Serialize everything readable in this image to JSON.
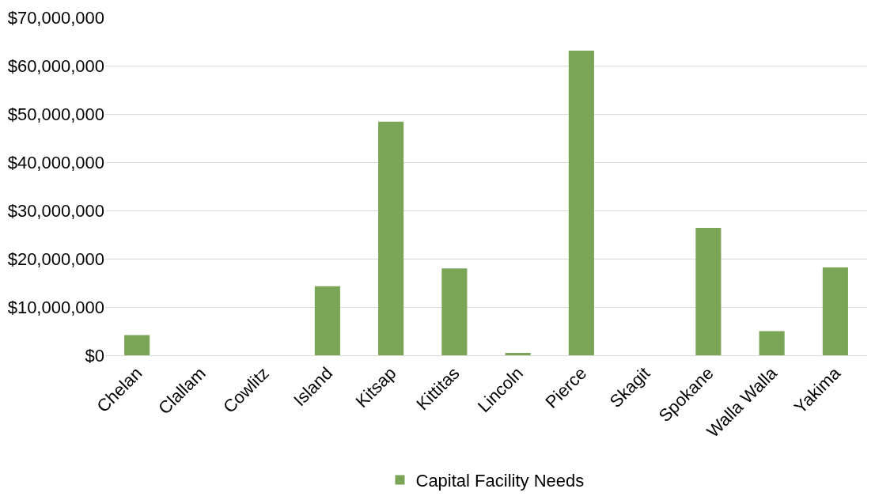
{
  "chart_data": {
    "type": "bar",
    "categories": [
      "Chelan",
      "Clallam",
      "Cowlitz",
      "Island",
      "Kitsap",
      "Kittitas",
      "Lincoln",
      "Pierce",
      "Skagit",
      "Spokane",
      "Walla Walla",
      "Yakima"
    ],
    "series": [
      {
        "name": "Capital Facility Needs",
        "color": "#7aa557",
        "values": [
          4200000,
          0,
          0,
          14300000,
          48400000,
          18000000,
          500000,
          63100000,
          0,
          26400000,
          5000000,
          18200000
        ]
      }
    ],
    "ylim": [
      0,
      70000000
    ],
    "yticks": [
      {
        "value": 0,
        "label": "$0"
      },
      {
        "value": 10000000,
        "label": "$10,000,000"
      },
      {
        "value": 20000000,
        "label": "$20,000,000"
      },
      {
        "value": 30000000,
        "label": "$30,000,000"
      },
      {
        "value": 40000000,
        "label": "$40,000,000"
      },
      {
        "value": 50000000,
        "label": "$50,000,000"
      },
      {
        "value": 60000000,
        "label": "$60,000,000"
      },
      {
        "value": 70000000,
        "label": "$70,000,000"
      }
    ],
    "grid": "y",
    "legend": "bottom"
  }
}
